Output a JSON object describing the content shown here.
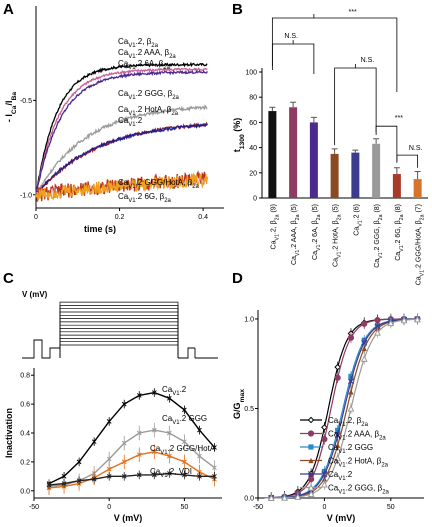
{
  "panels": {
    "A": {
      "letter": "A"
    },
    "B": {
      "letter": "B"
    },
    "C": {
      "letter": "C"
    },
    "D": {
      "letter": "D"
    }
  },
  "chart_data": [
    {
      "id": "A",
      "type": "line",
      "xlabel": "time (s)",
      "ylabel": "- I_Ca/I_Ba",
      "xlim": [
        0,
        0.45
      ],
      "ylim": [
        -1.07,
        0.0
      ],
      "xticks": [
        "0",
        "0.2",
        "0.4"
      ],
      "yticks": [
        "-0.5",
        "-1.0"
      ],
      "series": [
        {
          "name": "Ca_V1.2, β_2a",
          "color": "#000000",
          "tau": 0.05,
          "plateau": -0.31,
          "noise": 0.006
        },
        {
          "name": "Ca_V1.2 AAA, β_2a",
          "color": "#c9609a",
          "tau": 0.055,
          "plateau": -0.335,
          "noise": 0.006
        },
        {
          "name": "Ca_V1.2 6A, β_2a",
          "color": "#4b2a8f",
          "tau": 0.06,
          "plateau": -0.35,
          "noise": 0.006
        },
        {
          "name": "Ca_V1.2 GGG, β_2a",
          "color": "#9a9a9a",
          "tau": 0.12,
          "plateau": -0.52,
          "noise": 0.008
        },
        {
          "name": "Ca_V1.2 HotA, β_2a",
          "color": "#a01e1e",
          "tau": 0.15,
          "plateau": -0.6,
          "noise": 0.008
        },
        {
          "name": "Ca_V1.2",
          "color": "#1f1f8f",
          "tau": 0.14,
          "plateau": -0.61,
          "noise": 0.008
        },
        {
          "name": "Ca_V1.2 GGG/HotA, β_2a",
          "color": "#b8331e",
          "tau": 0.5,
          "plateau": -0.85,
          "noise": 0.04
        },
        {
          "name": "Ca_V1.2 6G, β_2a",
          "color": "#f0a020",
          "tau": 0.5,
          "plateau": -0.86,
          "noise": 0.035
        }
      ]
    },
    {
      "id": "B",
      "type": "bar",
      "ylabel": "t_1300 (%)",
      "ylim": [
        0,
        100
      ],
      "yticks": [
        "0",
        "20",
        "40",
        "60",
        "80",
        "100"
      ],
      "categories": [
        "Ca_V1.2, β_2a",
        "Ca_V1.2 AAA, β_2a",
        "Ca_V1.2 6A, β_2a",
        "Ca_V1.2 HotA, β_2a",
        "Ca_V1.2",
        "Ca_V1.2 GGG, β_2a",
        "Ca_V1.2 6G, β_2a",
        "Ca_V1.2 GGG/HotA, β_2a"
      ],
      "n": [
        "(9)",
        "(5)",
        "(5)",
        "(5)",
        "(6)",
        "(8)",
        "(8)",
        "(7)"
      ],
      "values": [
        69,
        72,
        60,
        35,
        36,
        43,
        19,
        15
      ],
      "errors": [
        3,
        4,
        4,
        4,
        2,
        4,
        5,
        6
      ],
      "colors": [
        "#111111",
        "#8e3a63",
        "#4b2a8f",
        "#8c4a22",
        "#3c3c8c",
        "#9a9a9a",
        "#a83a2a",
        "#d6752a"
      ],
      "annotations": {
        "top": "***",
        "ns1": "N.S.",
        "ns2": "N.S.",
        "sig": "***",
        "ns3": "N.S."
      }
    },
    {
      "id": "C",
      "type": "line",
      "protocol_label": "V (mV)",
      "xlabel": "V (mV)",
      "ylabel": "Inactivation",
      "xlim": [
        -50,
        75
      ],
      "ylim": [
        -0.05,
        0.85
      ],
      "xticks": [
        "-50",
        "0",
        "50"
      ],
      "yticks": [
        "0.0",
        "0.2",
        "0.4",
        "0.6",
        "0.8"
      ],
      "x": [
        -40,
        -30,
        -20,
        -10,
        0,
        10,
        20,
        30,
        40,
        50,
        60,
        70
      ],
      "series": [
        {
          "name": "Ca_V1.2",
          "color": "#000000",
          "values": [
            0.05,
            0.1,
            0.2,
            0.34,
            0.48,
            0.6,
            0.66,
            0.68,
            0.64,
            0.56,
            0.42,
            0.3
          ],
          "err": 0.03
        },
        {
          "name": "Ca_V1.2 GGG",
          "color": "#9a9a9a",
          "values": [
            0.03,
            0.04,
            0.07,
            0.12,
            0.22,
            0.33,
            0.4,
            0.42,
            0.4,
            0.34,
            0.24,
            0.16
          ],
          "err": 0.05
        },
        {
          "name": "Ca_V1.2 GGG/HotA",
          "color": "#e5701a",
          "values": [
            0.02,
            0.03,
            0.05,
            0.09,
            0.15,
            0.2,
            0.25,
            0.27,
            0.24,
            0.2,
            0.13,
            0.08
          ],
          "err": 0.05
        },
        {
          "name": "Ca_V1.2, VDI",
          "color": "#222222",
          "values": [
            0.04,
            0.05,
            0.07,
            0.08,
            0.1,
            0.1,
            0.11,
            0.11,
            0.12,
            0.11,
            0.1,
            0.1
          ],
          "err": 0.03
        }
      ]
    },
    {
      "id": "D",
      "type": "line",
      "xlabel": "V (mV)",
      "ylabel": "G/G_max",
      "xlim": [
        -50,
        75
      ],
      "ylim": [
        0,
        1.05
      ],
      "xticks": [
        "-50",
        "0",
        "50"
      ],
      "yticks": [
        "0.0",
        "0.5",
        "1.0"
      ],
      "x": [
        -40,
        -30,
        -20,
        -10,
        0,
        10,
        20,
        30,
        40,
        50,
        60,
        70
      ],
      "series": [
        {
          "name": "Ca_V1.2, β_2a",
          "color": "#000000",
          "marker": "diamond",
          "vhalf": 3,
          "k": 7
        },
        {
          "name": "Ca_V1.2 AAA, β_2a",
          "color": "#8e3a63",
          "marker": "circle",
          "vhalf": 5,
          "k": 7
        },
        {
          "name": "Ca_V1.2 GGG",
          "color": "#2a8ad0",
          "marker": "square",
          "vhalf": 14,
          "k": 8
        },
        {
          "name": "Ca_V1.2 HotA, β_2a",
          "color": "#8c4a22",
          "marker": "triangle",
          "vhalf": 17,
          "k": 8
        },
        {
          "name": "Ca_V1.2",
          "color": "#3c3c8c",
          "marker": "x",
          "vhalf": 15,
          "k": 8
        },
        {
          "name": "Ca_V1.2 GGG, β_2a",
          "color": "#9a9a9a",
          "marker": "open-triangle",
          "vhalf": 20,
          "k": 8
        }
      ]
    }
  ]
}
